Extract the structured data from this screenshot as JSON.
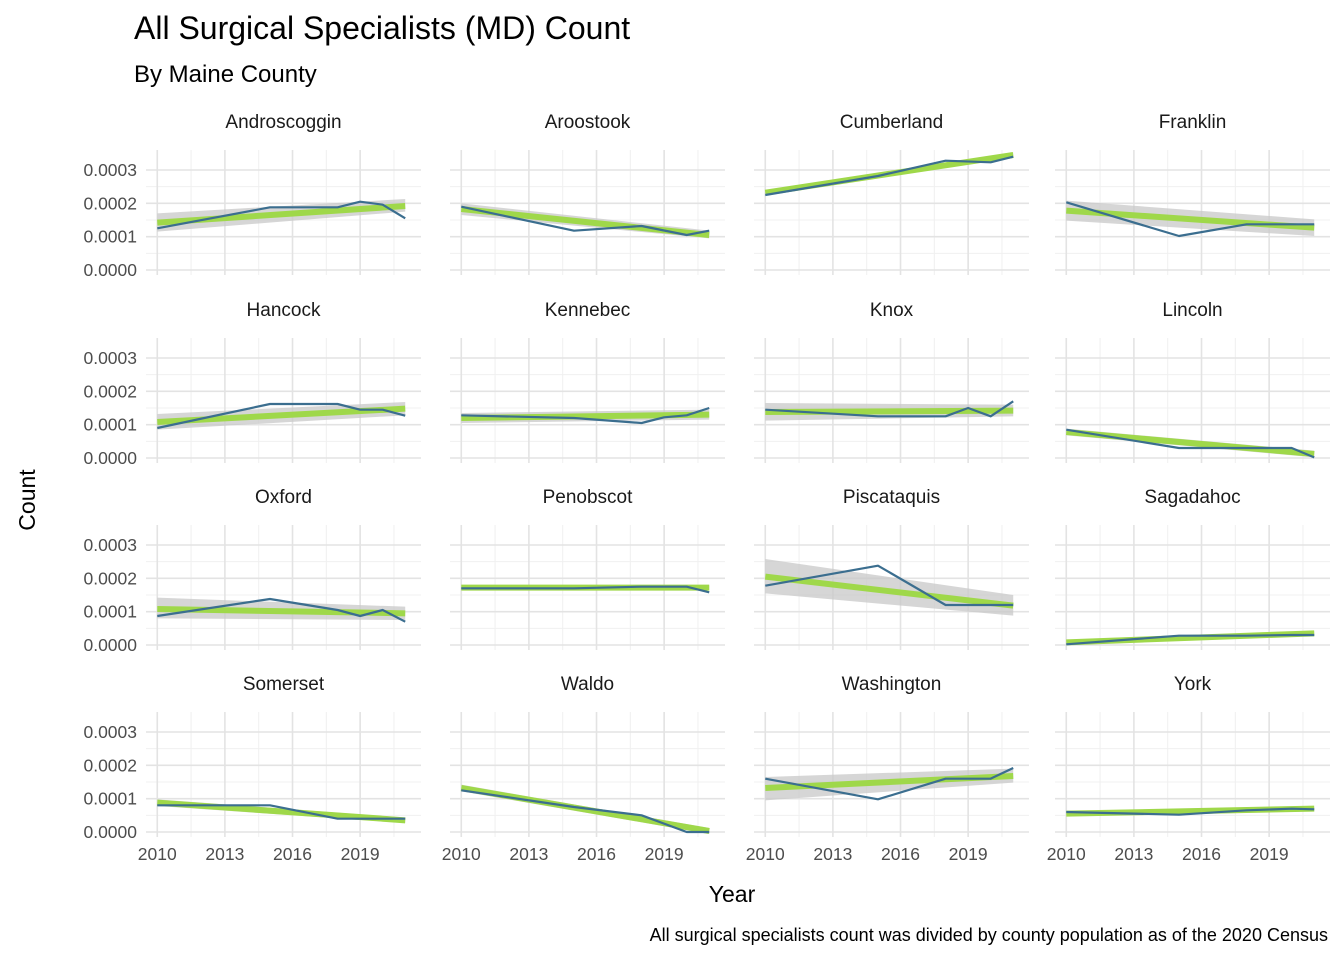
{
  "chart_data": {
    "type": "line",
    "title": "All Surgical Specialists (MD) Count",
    "subtitle": "By Maine County",
    "xlabel": "Year",
    "ylabel": "Count",
    "caption": "All surgical specialists count was divided by county population as of the 2020 Census",
    "xlim": [
      2009.5,
      2021.7
    ],
    "ylim": [
      -1.5e-05,
      0.00036
    ],
    "x_ticks": [
      2010,
      2013,
      2016,
      2019
    ],
    "x_tick_labels": [
      "2010",
      "2013",
      "2016",
      "2019"
    ],
    "y_ticks": [
      0,
      0.0001,
      0.0002,
      0.0003
    ],
    "y_tick_labels": [
      "0.0000",
      "0.0001",
      "0.0002",
      "0.0003"
    ],
    "grid": true,
    "facet_columns": 4,
    "colors": {
      "line": "#3b6e8f",
      "trend": "#9fd84a",
      "band": "#c8c8c8"
    },
    "panels": [
      {
        "name": "Androscoggin",
        "series": [
          {
            "x": [
              2010,
              2015,
              2018,
              2019,
              2020,
              2021
            ],
            "y": [
              0.000125,
              0.000188,
              0.000188,
              0.000205,
              0.000196,
              0.000155
            ]
          }
        ],
        "trend": {
          "y_start": 0.000142,
          "y_end": 0.000192
        },
        "band": {
          "start": [
            0.000115,
            0.00017
          ],
          "end": [
            0.000175,
            0.000213
          ]
        }
      },
      {
        "name": "Aroostook",
        "series": [
          {
            "x": [
              2010,
              2015,
              2018,
              2020,
              2021
            ],
            "y": [
              0.00019,
              0.000118,
              0.000132,
              0.000105,
              0.000118
            ]
          }
        ],
        "trend": {
          "y_start": 0.000183,
          "y_end": 0.000105
        },
        "band": {
          "start": [
            0.000165,
            0.0002
          ],
          "end": [
            9.5e-05,
            0.000118
          ]
        }
      },
      {
        "name": "Cumberland",
        "series": [
          {
            "x": [
              2010,
              2015,
              2018,
              2020,
              2021
            ],
            "y": [
              0.000225,
              0.000282,
              0.000328,
              0.000323,
              0.00034
            ]
          }
        ],
        "trend": {
          "y_start": 0.000232,
          "y_end": 0.000345
        },
        "band": {
          "start": [
            0.000228,
            0.000238
          ],
          "end": [
            0.000338,
            0.000352
          ]
        }
      },
      {
        "name": "Franklin",
        "series": [
          {
            "x": [
              2010,
              2015,
              2018,
              2021
            ],
            "y": [
              0.000203,
              0.000102,
              0.000137,
              0.000137
            ]
          }
        ],
        "trend": {
          "y_start": 0.000178,
          "y_end": 0.000127
        },
        "band": {
          "start": [
            0.000148,
            0.000208
          ],
          "end": [
            0.000102,
            0.000152
          ]
        }
      },
      {
        "name": "Hancock",
        "series": [
          {
            "x": [
              2010,
              2015,
              2018,
              2019,
              2020,
              2021
            ],
            "y": [
              9e-05,
              0.000162,
              0.000162,
              0.000145,
              0.000145,
              0.000127
            ]
          }
        ],
        "trend": {
          "y_start": 0.000108,
          "y_end": 0.000148
        },
        "band": {
          "start": [
            8.5e-05,
            0.000132
          ],
          "end": [
            0.000128,
            0.000168
          ]
        }
      },
      {
        "name": "Kennebec",
        "series": [
          {
            "x": [
              2010,
              2015,
              2018,
              2019,
              2020,
              2021
            ],
            "y": [
              0.000128,
              0.00012,
              0.000105,
              0.000122,
              0.000128,
              0.00015
            ]
          }
        ],
        "trend": {
          "y_start": 0.00012,
          "y_end": 0.00013
        },
        "band": {
          "start": [
            0.000105,
            0.000135
          ],
          "end": [
            0.000115,
            0.000145
          ]
        }
      },
      {
        "name": "Knox",
        "series": [
          {
            "x": [
              2010,
              2015,
              2018,
              2019,
              2020,
              2021
            ],
            "y": [
              0.000145,
              0.000125,
              0.000125,
              0.00015,
              0.000125,
              0.00017
            ]
          }
        ],
        "trend": {
          "y_start": 0.000138,
          "y_end": 0.000142
        },
        "band": {
          "start": [
            0.000112,
            0.000165
          ],
          "end": [
            0.000125,
            0.00016
          ]
        }
      },
      {
        "name": "Lincoln",
        "series": [
          {
            "x": [
              2010,
              2015,
              2018,
              2020,
              2021
            ],
            "y": [
              8.5e-05,
              3e-05,
              3e-05,
              3e-05,
              2e-06
            ]
          }
        ],
        "trend": {
          "y_start": 7.8e-05,
          "y_end": 1.2e-05
        },
        "band": {
          "start": [
            6.8e-05,
            8.8e-05
          ],
          "end": [
            2e-06,
            2.2e-05
          ]
        }
      },
      {
        "name": "Oxford",
        "series": [
          {
            "x": [
              2010,
              2015,
              2018,
              2019,
              2020,
              2021
            ],
            "y": [
              8.7e-05,
              0.000138,
              0.000105,
              8.7e-05,
              0.000105,
              7e-05
            ]
          }
        ],
        "trend": {
          "y_start": 0.000108,
          "y_end": 9.5e-05
        },
        "band": {
          "start": [
            8e-05,
            0.000142
          ],
          "end": [
            7.5e-05,
            0.000115
          ]
        }
      },
      {
        "name": "Penobscot",
        "series": [
          {
            "x": [
              2010,
              2015,
              2018,
              2020,
              2021
            ],
            "y": [
              0.00017,
              0.00017,
              0.000175,
              0.000175,
              0.000158
            ]
          }
        ],
        "trend": {
          "y_start": 0.000172,
          "y_end": 0.000172
        },
        "band": {
          "start": [
            0.000165,
            0.000179
          ],
          "end": [
            0.000165,
            0.000179
          ]
        }
      },
      {
        "name": "Piscataquis",
        "series": [
          {
            "x": [
              2010,
              2015,
              2018,
              2020,
              2021
            ],
            "y": [
              0.000178,
              0.000238,
              0.00012,
              0.00012,
              0.00012
            ]
          }
        ],
        "trend": {
          "y_start": 0.000205,
          "y_end": 0.000118
        },
        "band": {
          "start": [
            0.000155,
            0.000258
          ],
          "end": [
            8.8e-05,
            0.00015
          ]
        }
      },
      {
        "name": "Sagadahoc",
        "series": [
          {
            "x": [
              2010,
              2015,
              2018,
              2020,
              2021
            ],
            "y": [
              2e-06,
              2.8e-05,
              2.8e-05,
              3e-05,
              3e-05
            ]
          }
        ],
        "trend": {
          "y_start": 8e-06,
          "y_end": 3.5e-05
        },
        "band": {
          "start": [
            2e-06,
            1.4e-05
          ],
          "end": [
            2.9e-05,
            4.1e-05
          ]
        }
      },
      {
        "name": "Somerset",
        "series": [
          {
            "x": [
              2010,
              2015,
              2018,
              2020,
              2021
            ],
            "y": [
              8e-05,
              8e-05,
              4e-05,
              4e-05,
              4e-05
            ]
          }
        ],
        "trend": {
          "y_start": 8.8e-05,
          "y_end": 3.5e-05
        },
        "band": {
          "start": [
            7.8e-05,
            9.8e-05
          ],
          "end": [
            2.7e-05,
            4.3e-05
          ]
        }
      },
      {
        "name": "Waldo",
        "series": [
          {
            "x": [
              2010,
              2015,
              2018,
              2020,
              2021
            ],
            "y": [
              0.000125,
              7.5e-05,
              5e-05,
              0.0,
              0.0
            ]
          }
        ],
        "trend": {
          "y_start": 0.000132,
          "y_end": 3e-06
        },
        "band": {
          "start": [
            0.000122,
            0.000142
          ],
          "end": [
            -6e-06,
            1.2e-05
          ]
        }
      },
      {
        "name": "Washington",
        "series": [
          {
            "x": [
              2010,
              2015,
              2018,
              2020,
              2021
            ],
            "y": [
              0.00016,
              9.8e-05,
              0.00016,
              0.00016,
              0.000192
            ]
          }
        ],
        "trend": {
          "y_start": 0.000132,
          "y_end": 0.000168
        },
        "band": {
          "start": [
            9.5e-05,
            0.000165
          ],
          "end": [
            0.000148,
            0.00019
          ]
        }
      },
      {
        "name": "York",
        "series": [
          {
            "x": [
              2010,
              2015,
              2018,
              2020,
              2021
            ],
            "y": [
              6e-05,
              5.2e-05,
              6.5e-05,
              7e-05,
              6.8e-05
            ]
          }
        ],
        "trend": {
          "y_start": 5.5e-05,
          "y_end": 7e-05
        },
        "band": {
          "start": [
            5.1e-05,
            5.9e-05
          ],
          "end": [
            6.6e-05,
            7.4e-05
          ]
        }
      }
    ]
  }
}
